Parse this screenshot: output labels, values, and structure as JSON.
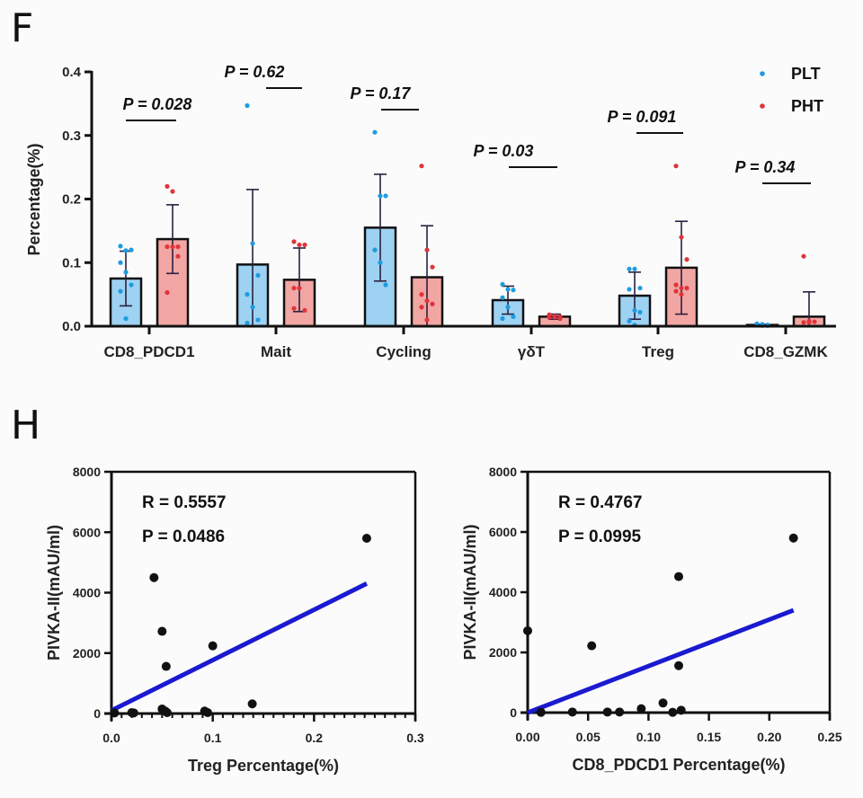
{
  "panels": {
    "top_label": "F",
    "bottom_label": "H"
  },
  "chart_data": [
    {
      "type": "bar",
      "title": "",
      "xlabel": "",
      "ylabel": "Percentage(%)",
      "ylim": [
        0,
        0.4
      ],
      "yticks": [
        "0.0",
        "0.1",
        "0.2",
        "0.3",
        "0.4"
      ],
      "categories": [
        "CD8_PDCD1",
        "Mait",
        "Cycling",
        "γδT",
        "Treg",
        "CD8_GZMK"
      ],
      "legend": {
        "position": "top-right",
        "entries": [
          {
            "name": "PLT",
            "color": "#1e9be0"
          },
          {
            "name": "PHT",
            "color": "#e0343c"
          }
        ]
      },
      "series": [
        {
          "name": "PLT",
          "bar_color": "#9ed2f2",
          "dot_color": "#1e9be0",
          "values": [
            0.075,
            0.097,
            0.155,
            0.041,
            0.048,
            0.002
          ],
          "errors": [
            0.043,
            0.118,
            0.084,
            0.022,
            0.037,
            0.001
          ],
          "points": [
            [
              0.126,
              0.119,
              0.12,
              0.1,
              0.085,
              0.065,
              0.055,
              0.012
            ],
            [
              0.347,
              0.13,
              0.08,
              0.05,
              0.03,
              0.01,
              0.005
            ],
            [
              0.305,
              0.205,
              0.205,
              0.12,
              0.1,
              0.065
            ],
            [
              0.066,
              0.058,
              0.057,
              0.045,
              0.03,
              0.015,
              0.012
            ],
            [
              0.09,
              0.09,
              0.06,
              0.058,
              0.025,
              0.022,
              0.008,
              0.002
            ],
            [
              0.004,
              0.003,
              0.002,
              0.002,
              0.001,
              0.001
            ]
          ]
        },
        {
          "name": "PHT",
          "bar_color": "#f2a6a3",
          "dot_color": "#e0343c",
          "values": [
            0.137,
            0.073,
            0.077,
            0.015,
            0.092,
            0.015
          ],
          "errors": [
            0.054,
            0.05,
            0.081,
            0.004,
            0.073,
            0.039
          ],
          "points": [
            [
              0.22,
              0.212,
              0.125,
              0.125,
              0.125,
              0.11,
              0.053
            ],
            [
              0.133,
              0.128,
              0.128,
              0.06,
              0.06,
              0.025,
              0.028
            ],
            [
              0.252,
              0.12,
              0.093,
              0.05,
              0.04,
              0.035,
              0.03,
              0.01
            ],
            [
              0.018,
              0.016,
              0.015,
              0.014,
              0.014,
              0.012
            ],
            [
              0.252,
              0.14,
              0.105,
              0.065,
              0.06,
              0.06,
              0.055,
              0.05
            ],
            [
              0.11,
              0.008,
              0.007,
              0.006,
              0.006
            ]
          ]
        }
      ],
      "annotations": [
        "P = 0.028",
        "P = 0.62",
        "P = 0.17",
        "P = 0.03",
        "P = 0.091",
        "P = 0.34"
      ]
    },
    {
      "type": "scatter",
      "title": "",
      "xlabel": "Treg Percentage(%)",
      "ylabel": "PIVKA-II(mAU/ml)",
      "xlim": [
        0,
        0.3
      ],
      "ylim": [
        0,
        8000
      ],
      "xticks": [
        "0.0",
        "0.1",
        "0.2",
        "0.3"
      ],
      "yticks": [
        "0",
        "2000",
        "4000",
        "6000",
        "8000"
      ],
      "stats": {
        "r": "R = 0.5557",
        "p": "P = 0.0486"
      },
      "fit_line": {
        "x": [
          0.0,
          0.252
        ],
        "y": [
          100,
          4300
        ],
        "color": "#1a1ad0"
      },
      "points": [
        {
          "x": 0.252,
          "y": 5800
        },
        {
          "x": 0.042,
          "y": 4500
        },
        {
          "x": 0.05,
          "y": 2720
        },
        {
          "x": 0.1,
          "y": 2240
        },
        {
          "x": 0.054,
          "y": 1560
        },
        {
          "x": 0.139,
          "y": 320
        },
        {
          "x": 0.05,
          "y": 150
        },
        {
          "x": 0.053,
          "y": 80
        },
        {
          "x": 0.055,
          "y": 30
        },
        {
          "x": 0.092,
          "y": 80
        },
        {
          "x": 0.095,
          "y": 30
        },
        {
          "x": 0.02,
          "y": 30
        },
        {
          "x": 0.022,
          "y": 20
        },
        {
          "x": 0.003,
          "y": 20
        }
      ]
    },
    {
      "type": "scatter",
      "title": "",
      "xlabel": "CD8_PDCD1 Percentage(%)",
      "ylabel": "PIVKA-II(mAU/ml)",
      "xlim": [
        0,
        0.25
      ],
      "ylim": [
        0,
        8000
      ],
      "xticks": [
        "0.00",
        "0.05",
        "0.10",
        "0.15",
        "0.20",
        "0.25"
      ],
      "yticks": [
        "0",
        "2000",
        "4000",
        "6000",
        "8000"
      ],
      "stats": {
        "r": "R = 0.4767",
        "p": "P =  0.0995"
      },
      "fit_line": {
        "x": [
          0.0,
          0.22
        ],
        "y": [
          0,
          3400
        ],
        "color": "#1a1ad0"
      },
      "points": [
        {
          "x": 0.22,
          "y": 5800
        },
        {
          "x": 0.125,
          "y": 4520
        },
        {
          "x": 0.0,
          "y": 2720
        },
        {
          "x": 0.053,
          "y": 2220
        },
        {
          "x": 0.125,
          "y": 1560
        },
        {
          "x": 0.112,
          "y": 320
        },
        {
          "x": 0.094,
          "y": 130
        },
        {
          "x": 0.127,
          "y": 80
        },
        {
          "x": 0.12,
          "y": 10
        },
        {
          "x": 0.076,
          "y": 20
        },
        {
          "x": 0.066,
          "y": 20
        },
        {
          "x": 0.037,
          "y": 20
        },
        {
          "x": 0.011,
          "y": 10
        }
      ]
    }
  ]
}
